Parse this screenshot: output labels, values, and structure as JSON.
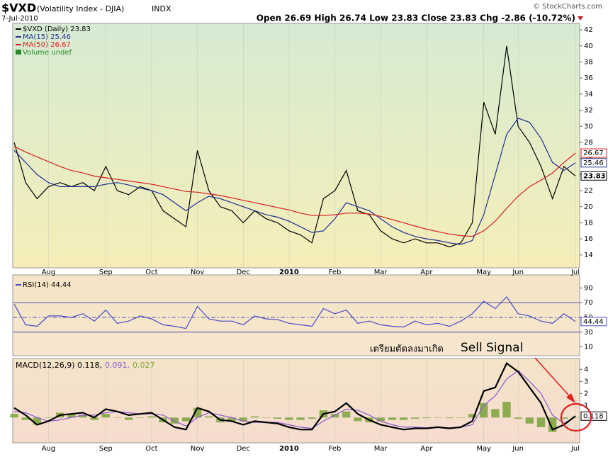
{
  "header": {
    "symbol": "$VXD",
    "description": "(Volatility Index - DJIA)",
    "exchange": "INDX",
    "date": "7-Jul-2010",
    "quote": "Open 26.69 High 26.74 Low 23.83 Close 23.83 Chg -2.86 (-10.72%)",
    "credit": "© StockCharts.com"
  },
  "annotation": {
    "text_th": "เตรียมตัดลงมาเกิด",
    "text_en": "Sell Signal"
  },
  "chart_data": [
    {
      "type": "line",
      "volume_note": "Volume undef",
      "categories": [
        null,
        null,
        null,
        "Aug",
        null,
        null,
        null,
        null,
        "Sep",
        null,
        null,
        null,
        "Oct",
        null,
        null,
        null,
        "Nov",
        null,
        null,
        null,
        "Dec",
        null,
        null,
        null,
        "2010",
        null,
        null,
        null,
        "Feb",
        null,
        null,
        null,
        "Mar",
        null,
        null,
        null,
        "Apr",
        null,
        null,
        null,
        null,
        "May",
        null,
        null,
        "Jun",
        null,
        null,
        null,
        null,
        "Jul"
      ],
      "ylim": [
        12.4,
        42.8
      ],
      "yticks": [
        14,
        16,
        18,
        20,
        22,
        24,
        26,
        28,
        30,
        32,
        34,
        36,
        38,
        40,
        42
      ],
      "series": [
        {
          "name": "$VXD (Daily) 23.83",
          "color": "#000000",
          "last_label": "23.83",
          "values": [
            28,
            23,
            21,
            22.5,
            23,
            22.5,
            23,
            22,
            25,
            22,
            21.5,
            22.5,
            22,
            19.5,
            18.5,
            17.5,
            27,
            22,
            20,
            19.5,
            18,
            19.5,
            18.5,
            18,
            17,
            16.5,
            15.5,
            21,
            22,
            24.5,
            19.5,
            19,
            17,
            16,
            15.5,
            16,
            15.5,
            15.5,
            15,
            15.5,
            18,
            33,
            29,
            40,
            30,
            28,
            25,
            21,
            25,
            23.83
          ]
        },
        {
          "name": "MA(15) 25.46",
          "color": "#1f2f8f",
          "last_label": "25.46",
          "values": [
            27,
            25.5,
            24,
            23,
            22.5,
            22.5,
            22.5,
            22.5,
            22.8,
            23,
            22.7,
            22.3,
            22,
            21.5,
            20.5,
            19.5,
            20.5,
            21.3,
            21,
            20.5,
            20,
            19.5,
            19,
            18.7,
            18.2,
            17.5,
            16.8,
            17,
            18.5,
            20.5,
            20,
            19.5,
            18.5,
            17.5,
            16.8,
            16.3,
            16,
            15.8,
            15.5,
            15.3,
            15.8,
            19,
            24,
            29,
            31,
            30.5,
            28.5,
            25.5,
            24.5,
            25.46
          ]
        },
        {
          "name": "MA(50) 26.67",
          "color": "#d62020",
          "last_label": "26.67",
          "values": [
            27.5,
            26.8,
            26.2,
            25.6,
            25,
            24.5,
            24.2,
            23.8,
            23.6,
            23.4,
            23.2,
            23,
            22.8,
            22.5,
            22.2,
            21.9,
            21.8,
            21.6,
            21.4,
            21.1,
            20.8,
            20.5,
            20.2,
            19.9,
            19.6,
            19.2,
            18.9,
            18.9,
            19,
            19.2,
            19.2,
            19.1,
            18.8,
            18.4,
            18,
            17.6,
            17.2,
            16.9,
            16.6,
            16.4,
            16.3,
            17,
            18.2,
            19.8,
            21.3,
            22.5,
            23.3,
            24.2,
            25.5,
            26.67
          ]
        }
      ]
    },
    {
      "type": "line",
      "ylim": [
        -2,
        102
      ],
      "yticks": [
        10,
        30,
        50,
        70,
        90
      ],
      "ref_lines": [
        30,
        50,
        70
      ],
      "series": [
        {
          "name": "RSI(14) 44.44",
          "color": "#4a4ac8",
          "last_label": "44.44",
          "values": [
            68,
            40,
            38,
            52,
            52,
            50,
            55,
            45,
            60,
            42,
            45,
            52,
            48,
            40,
            38,
            35,
            65,
            48,
            45,
            45,
            40,
            52,
            48,
            47,
            42,
            40,
            38,
            62,
            55,
            60,
            42,
            45,
            40,
            38,
            37,
            45,
            40,
            42,
            38,
            45,
            55,
            72,
            62,
            78,
            55,
            52,
            45,
            42,
            55,
            44.44
          ]
        }
      ]
    },
    {
      "type": "line",
      "ylim": [
        -2.1,
        4.9
      ],
      "yticks": [
        1,
        2,
        3,
        4
      ],
      "series": [
        {
          "name": "0.027",
          "type": "bar",
          "color": "#7aa23a",
          "values": [
            0.3,
            -0.2,
            -0.6,
            0,
            0.4,
            0.3,
            0.2,
            -0.2,
            0.3,
            0,
            -0.2,
            0,
            0.1,
            -0.4,
            -0.5,
            -0.3,
            0.8,
            0.1,
            -0.4,
            -0.3,
            -0.3,
            0.1,
            0,
            -0.1,
            -0.2,
            -0.2,
            -0.1,
            0.6,
            0.3,
            0.5,
            -0.3,
            -0.4,
            -0.3,
            -0.2,
            -0.2,
            -0.1,
            -0.05,
            0,
            -0.05,
            0,
            0.3,
            1.2,
            0.7,
            1.3,
            -0.1,
            -0.5,
            -0.8,
            -1.2,
            -0.1,
            0.027
          ]
        },
        {
          "name": "0.091,",
          "color": "#8a5ad0",
          "values": [
            0.5,
            0.4,
            0,
            -0.3,
            -0.2,
            0,
            0.2,
            0.2,
            0.4,
            0.5,
            0.4,
            0.3,
            0.3,
            0.2,
            -0.3,
            -0.7,
            0,
            0.4,
            0.2,
            0,
            -0.3,
            -0.4,
            -0.4,
            -0.4,
            -0.6,
            -0.8,
            -0.9,
            -0.3,
            0.2,
            0.7,
            0.6,
            0.2,
            -0.3,
            -0.6,
            -0.8,
            -0.8,
            -0.85,
            -0.8,
            -0.85,
            -0.8,
            -0.6,
            1.0,
            1.8,
            3.2,
            3.9,
            3.0,
            2.0,
            0.2,
            -0.5,
            0.091
          ]
        },
        {
          "name": "MACD(12,26,9) 0.118,",
          "color": "#000000",
          "width": 2.2,
          "last_label": "0.118",
          "values": [
            0.8,
            0.2,
            -0.6,
            -0.3,
            0.2,
            0.3,
            0.4,
            0,
            0.7,
            0.5,
            0.2,
            0.3,
            0.4,
            -0.2,
            -0.8,
            -1.0,
            0.8,
            0.5,
            -0.2,
            -0.3,
            -0.6,
            -0.3,
            -0.4,
            -0.5,
            -0.8,
            -1.0,
            -1.0,
            0.3,
            0.5,
            1.2,
            0.3,
            -0.2,
            -0.6,
            -0.8,
            -1.0,
            -0.9,
            -0.9,
            -0.8,
            -0.9,
            -0.8,
            -0.3,
            2.2,
            2.5,
            4.5,
            3.8,
            2.5,
            1.2,
            -1.0,
            -0.6,
            0.118
          ]
        }
      ]
    }
  ]
}
